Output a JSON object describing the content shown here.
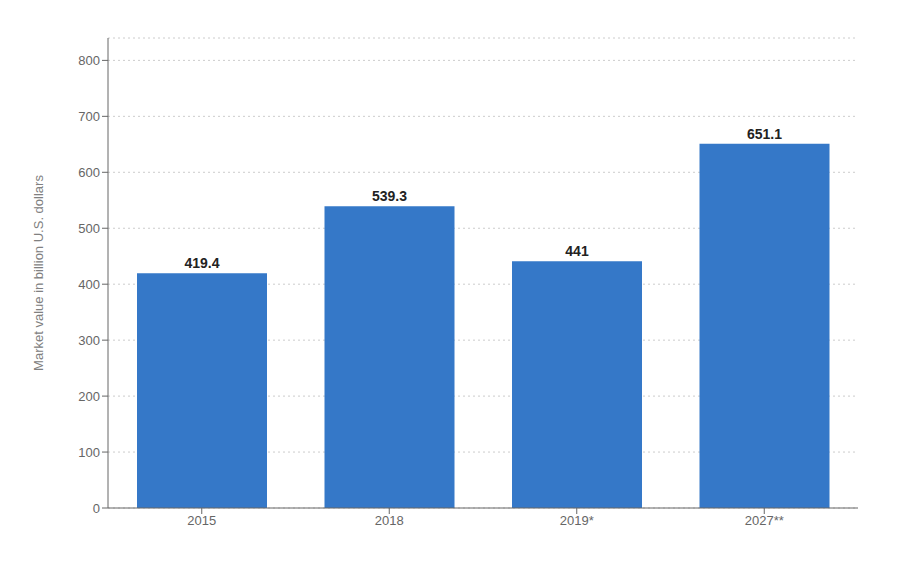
{
  "chart_data": {
    "type": "bar",
    "categories": [
      "2015",
      "2018",
      "2019*",
      "2027**"
    ],
    "values": [
      419.4,
      539.3,
      441,
      651.1
    ],
    "color": "#3578c8",
    "ylabel": "Market value in billion U.S. dollars",
    "ylim": [
      0,
      840
    ],
    "yticks": [
      0,
      100,
      200,
      300,
      400,
      500,
      600,
      700,
      800
    ],
    "grid": true,
    "data_labels": true
  }
}
